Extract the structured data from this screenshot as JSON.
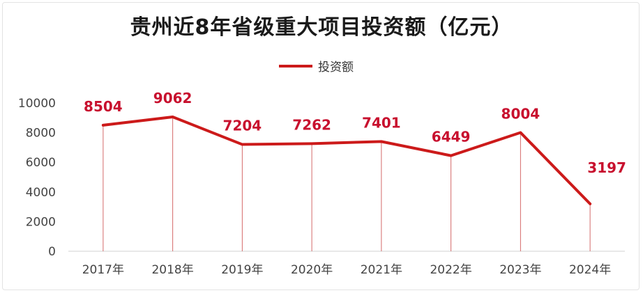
{
  "chart_data": {
    "type": "line",
    "title": "贵州近8年省级重大项目投资额（亿元）",
    "categories": [
      "2017年",
      "2018年",
      "2019年",
      "2020年",
      "2021年",
      "2022年",
      "2023年",
      "2024年"
    ],
    "series": [
      {
        "name": "投资额",
        "values": [
          8504,
          9062,
          7204,
          7262,
          7401,
          6449,
          8004,
          3197
        ]
      }
    ],
    "data_labels": [
      "8504",
      "9062",
      "7204",
      "7262",
      "7401",
      "6449",
      "8004",
      "3197"
    ],
    "y_ticks": [
      "0",
      "2000",
      "4000",
      "6000",
      "8000",
      "10000"
    ],
    "ylim": [
      0,
      10000
    ],
    "legend_position": "top-center",
    "grid": false,
    "line_color": "#cc1a1a",
    "drop_line_color": "#d46a6a",
    "label_color": "#c8102e"
  }
}
